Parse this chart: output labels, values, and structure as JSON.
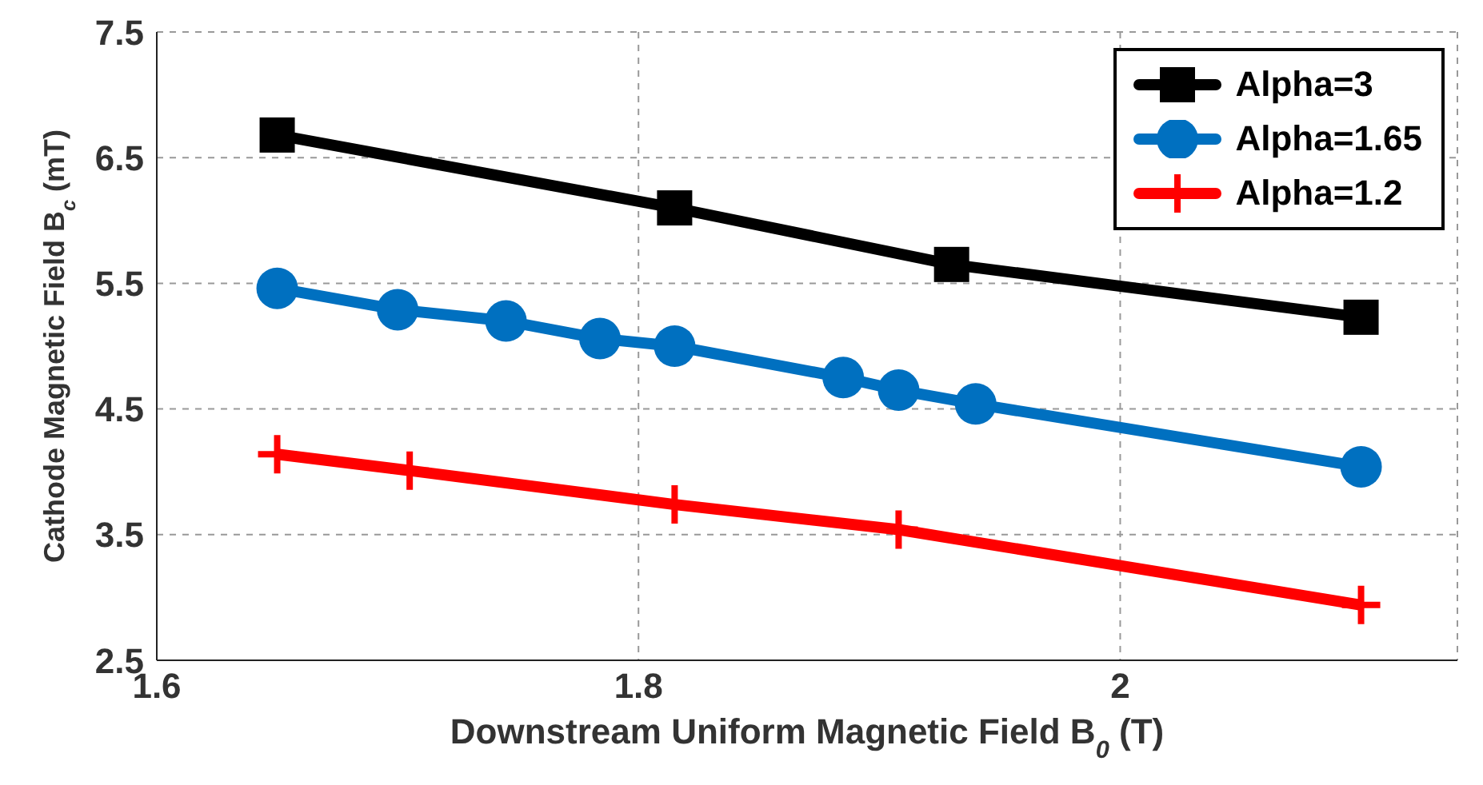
{
  "chart_data": {
    "type": "line",
    "xlabel": "Downstream Uniform Magnetic Field B$_{0}$ (T)",
    "ylabel": "Cathode Magnetic Field B$_{c}$ (mT)",
    "xlim": [
      1.6,
      2.14
    ],
    "xticks": [
      1.6,
      1.8,
      2
    ],
    "ylim": [
      2.5,
      7.5
    ],
    "yticks": [
      2.5,
      3.5,
      4.5,
      5.5,
      6.5,
      7.5
    ],
    "grid": true,
    "legend": "top right",
    "line_style": "solid",
    "series": [
      {
        "name": "Alpha=3",
        "color": "#000000",
        "marker": "square",
        "x": [
          1.65,
          1.815,
          1.93,
          2.1
        ],
        "values": [
          6.68,
          6.1,
          5.65,
          5.23
        ]
      },
      {
        "name": "Alpha=1.65",
        "color": "#0070c0",
        "marker": "circle",
        "x": [
          1.65,
          1.7,
          1.745,
          1.784,
          1.815,
          1.885,
          1.908,
          1.94,
          2.1
        ],
        "values": [
          5.46,
          5.29,
          5.2,
          5.06,
          5.0,
          4.75,
          4.65,
          4.54,
          4.04
        ]
      },
      {
        "name": "Alpha=1.2",
        "color": "#ff0000",
        "marker": "cross",
        "x": [
          1.65,
          1.705,
          1.815,
          1.908,
          2.1
        ],
        "values": [
          4.14,
          4.01,
          3.74,
          3.54,
          2.94
        ]
      }
    ]
  }
}
